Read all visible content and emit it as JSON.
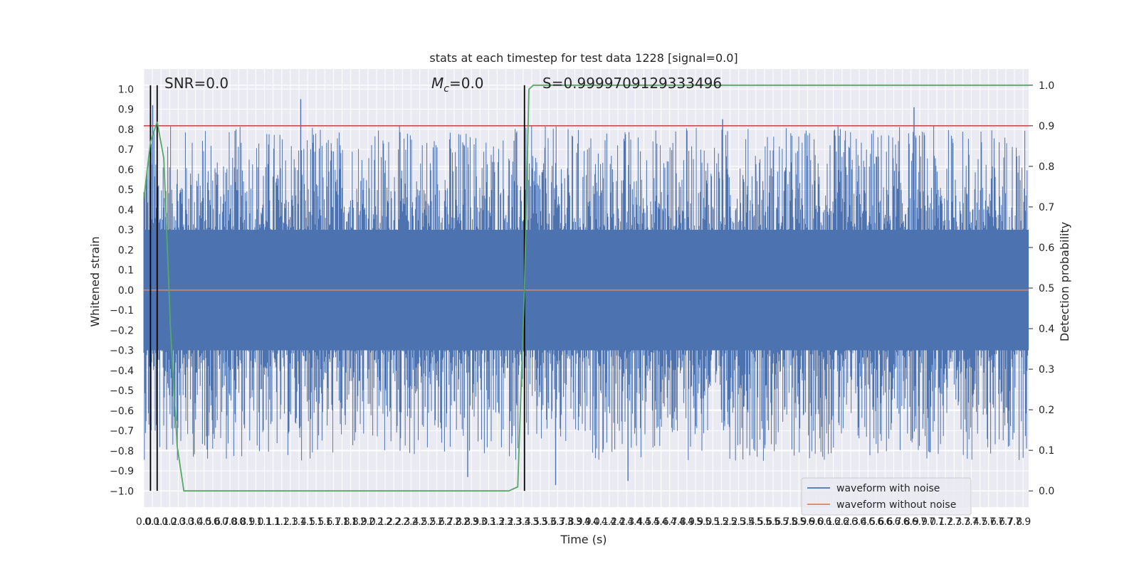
{
  "chart_data": {
    "type": "line",
    "title": "stats at each timestep for test data 1228 [signal=0.0]",
    "xlabel": "Time (s)",
    "ylabel_left": "Whitened strain",
    "ylabel_right": "Detection probability",
    "xlim": [
      0.0,
      7.95
    ],
    "ylim_left": [
      -1.08,
      1.1
    ],
    "ylim_right": [
      -0.04,
      1.04
    ],
    "grid": true,
    "legend_position": "lower-right",
    "x_ticks": [
      "0.0",
      "0.1",
      "0.1",
      "0.2",
      "0.3",
      "0.3",
      "0.4",
      "0.5",
      "0.6",
      "0.7",
      "0.8",
      "0.8",
      "0.9",
      "1.0",
      "1.1",
      "1.1",
      "1.2",
      "1.3",
      "1.4",
      "1.5",
      "1.5",
      "1.6",
      "1.7",
      "1.8",
      "1.8",
      "1.9",
      "2.0",
      "2.1",
      "2.2",
      "2.2",
      "2.3",
      "2.4",
      "2.5",
      "2.5",
      "2.6",
      "2.7",
      "2.8",
      "2.8",
      "2.9",
      "3.0",
      "3.1",
      "3.2",
      "3.2",
      "3.3",
      "3.4",
      "3.5",
      "3.5",
      "3.6",
      "3.7",
      "3.8",
      "3.9",
      "3.9",
      "4.0",
      "4.1",
      "4.2",
      "4.2",
      "4.3",
      "4.4",
      "4.5",
      "4.5",
      "4.6",
      "4.7",
      "4.8",
      "4.9",
      "4.9",
      "5.0",
      "5.1",
      "5.2",
      "5.2",
      "5.3",
      "5.4",
      "5.5",
      "5.6",
      "5.6",
      "5.7",
      "5.8",
      "5.9",
      "5.9",
      "6.0",
      "6.1",
      "6.2",
      "6.2",
      "6.3",
      "6.4",
      "6.5",
      "6.6",
      "6.6",
      "6.7",
      "6.8",
      "6.9",
      "6.9",
      "7.0",
      "7.1",
      "7.2",
      "7.3",
      "7.3",
      "7.4",
      "7.5",
      "7.6",
      "7.6",
      "7.7",
      "7.8",
      "7.9"
    ],
    "y_ticks_left": [
      "−1.0",
      "−0.9",
      "−0.8",
      "−0.7",
      "−0.6",
      "−0.5",
      "−0.4",
      "−0.3",
      "−0.2",
      "−0.1",
      "0.0",
      "0.1",
      "0.2",
      "0.3",
      "0.4",
      "0.5",
      "0.6",
      "0.7",
      "0.8",
      "0.9",
      "1.0"
    ],
    "y_ticks_right": [
      "0.0",
      "0.1",
      "0.2",
      "0.3",
      "0.4",
      "0.5",
      "0.6",
      "0.7",
      "0.8",
      "0.9",
      "1.0"
    ],
    "annotations": {
      "snr": "SNR=0.0",
      "mc_symbol": "M",
      "mc_subscript": "c",
      "mc_value": "=0.0",
      "s": "S=0.9999709129333496"
    },
    "threshold_line": {
      "axis": "right",
      "y": 0.9,
      "color": "#c44e52"
    },
    "vertical_lines": {
      "x": [
        0.06,
        0.12,
        3.42
      ],
      "color": "#000000"
    },
    "series": [
      {
        "name": "waveform with noise",
        "axis": "left",
        "color": "#4c72b0",
        "kind": "noise-band",
        "dense_envelope": [
          -0.3,
          0.3
        ],
        "peak_max": [
          0.92,
          0.95,
          0.85,
          0.91
        ],
        "peak_min": [
          -0.98,
          -0.93,
          -0.97,
          -0.95
        ]
      },
      {
        "name": "waveform without noise",
        "axis": "left",
        "color": "#dd8452",
        "x": [
          0.0,
          7.95
        ],
        "y": [
          0.0,
          0.0
        ]
      },
      {
        "name": "detection probability",
        "axis": "right",
        "color": "#55a868",
        "x": [
          0.0,
          0.06,
          0.12,
          0.18,
          0.24,
          0.3,
          0.36,
          0.45,
          1.0,
          2.0,
          3.0,
          3.28,
          3.36,
          3.42,
          3.46,
          3.5,
          3.6,
          7.95
        ],
        "y": [
          0.72,
          0.86,
          0.91,
          0.82,
          0.4,
          0.11,
          0.0,
          0.0,
          0.0,
          0.0,
          0.0,
          0.0,
          0.01,
          0.5,
          0.99,
          1.0,
          1.0,
          1.0
        ]
      }
    ]
  }
}
